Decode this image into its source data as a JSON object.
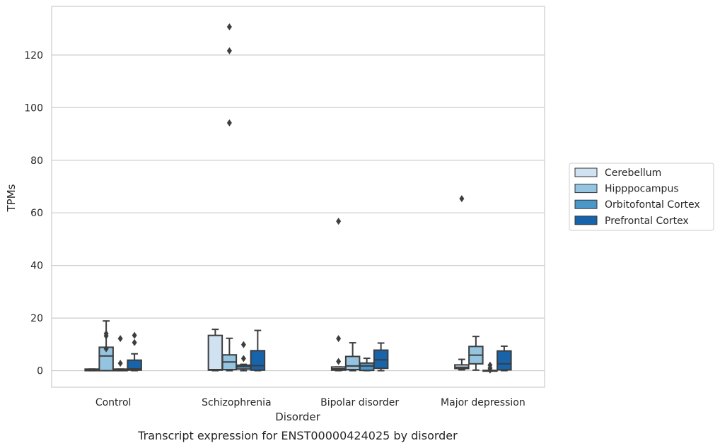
{
  "chart_data": {
    "type": "box",
    "title": "",
    "caption": "Transcript expression for ENST00000424025 by disorder",
    "xlabel": "Disorder",
    "ylabel": "TPMs",
    "ylim": [
      -6.3,
      138.5
    ],
    "yticks": [
      0,
      20,
      40,
      60,
      80,
      100,
      120
    ],
    "grid": "horizontal",
    "legend_position": "right",
    "categories": [
      "Control",
      "Schizophrenia",
      "Bipolar disorder",
      "Major depression"
    ],
    "series": [
      {
        "name": "Cerebellum",
        "color": "#d0e1f2",
        "boxes": [
          {
            "q1": 0,
            "median": 0.3,
            "q3": 0.6,
            "whislo": 0,
            "whishi": 0.6,
            "fliers": []
          },
          {
            "q1": 0.2,
            "median": 0.4,
            "q3": 13.4,
            "whislo": 0,
            "whishi": 15.7,
            "fliers": []
          },
          {
            "q1": 0.2,
            "median": 0.7,
            "q3": 1.4,
            "whislo": 0,
            "whishi": 1.4,
            "fliers": [
              3.5,
              12.2,
              56.8
            ]
          },
          {
            "q1": 0.8,
            "median": 1.3,
            "q3": 2.2,
            "whislo": 0.3,
            "whishi": 4.3,
            "fliers": [
              65.4
            ]
          }
        ]
      },
      {
        "name": "Hipppocampus",
        "color": "#94c4df",
        "boxes": [
          {
            "q1": 0,
            "median": 5.6,
            "q3": 8.9,
            "whislo": 0,
            "whishi": 18.9,
            "fliers": [
              8.3,
              13.2,
              14.1
            ]
          },
          {
            "q1": 0.4,
            "median": 3.3,
            "q3": 6.0,
            "whislo": 0,
            "whishi": 12.3,
            "fliers": [
              94.2,
              121.6,
              130.7
            ]
          },
          {
            "q1": 0.4,
            "median": 1.8,
            "q3": 5.4,
            "whislo": 0,
            "whishi": 10.6,
            "fliers": []
          },
          {
            "q1": 2.6,
            "median": 5.9,
            "q3": 9.2,
            "whislo": 0.2,
            "whishi": 13.0,
            "fliers": []
          }
        ]
      },
      {
        "name": "Orbitofontal Cortex",
        "color": "#4a98c9",
        "boxes": [
          {
            "q1": 0,
            "median": 0.3,
            "q3": 0.6,
            "whislo": 0,
            "whishi": 0.6,
            "fliers": [
              2.8,
              12.2
            ]
          },
          {
            "q1": 0.6,
            "median": 1.6,
            "q3": 2.1,
            "whislo": 0,
            "whishi": 2.4,
            "fliers": [
              4.6,
              9.9
            ]
          },
          {
            "q1": 0.1,
            "median": 1.8,
            "q3": 2.9,
            "whislo": 0,
            "whishi": 4.7,
            "fliers": []
          },
          {
            "q1": 0,
            "median": 0,
            "q3": 0.1,
            "whislo": 0,
            "whishi": 0.1,
            "fliers": [
              0.2,
              1.0,
              2.1
            ]
          }
        ]
      },
      {
        "name": "Prefrontal Cortex",
        "color": "#1764ab",
        "boxes": [
          {
            "q1": 0.2,
            "median": 0.7,
            "q3": 4.0,
            "whislo": 0,
            "whishi": 6.4,
            "fliers": [
              10.7,
              13.4
            ]
          },
          {
            "q1": 0.2,
            "median": 1.9,
            "q3": 7.6,
            "whislo": 0,
            "whishi": 15.3,
            "fliers": []
          },
          {
            "q1": 0.9,
            "median": 4.1,
            "q3": 7.8,
            "whislo": 0,
            "whishi": 10.5,
            "fliers": []
          },
          {
            "q1": 0.3,
            "median": 2.6,
            "q3": 7.5,
            "whislo": 0,
            "whishi": 9.3,
            "fliers": []
          }
        ]
      }
    ]
  }
}
